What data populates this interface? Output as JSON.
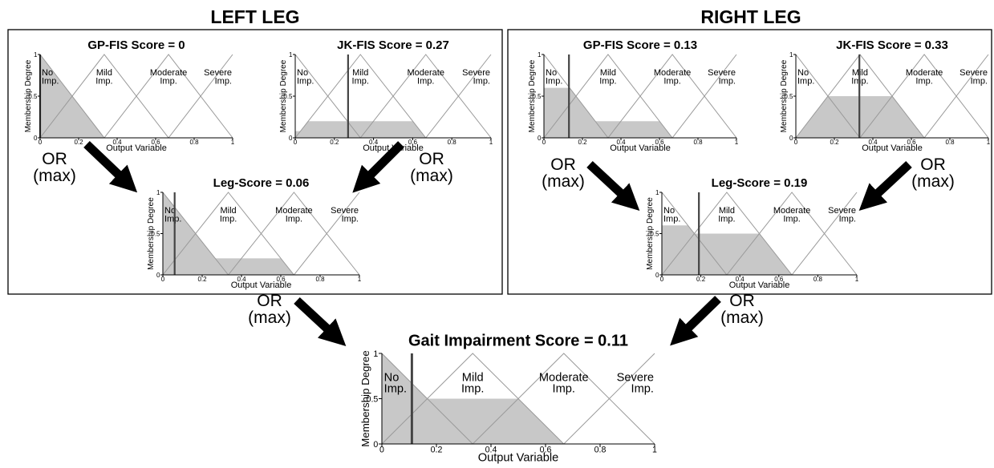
{
  "panels": [
    "LEFT LEG",
    "RIGHT LEG"
  ],
  "arrow_labels": [
    [
      "OR",
      "(max)"
    ],
    [
      "OR",
      "(max)"
    ],
    [
      "OR",
      "(max)"
    ],
    [
      "OR",
      "(max)"
    ],
    [
      "OR",
      "(max)"
    ],
    [
      "OR",
      "(max)"
    ]
  ],
  "chart_data": [
    {
      "type": "line",
      "title": "GP-FIS Score = 0",
      "score": 0,
      "activations": [
        1,
        0,
        0,
        0
      ],
      "ylabel": "Membership Degree",
      "xlabel": "Output Variable",
      "x": [
        0,
        0.333,
        0.667,
        1
      ],
      "series": [
        {
          "name": "No Imp.",
          "color": "#999999",
          "values": [
            1,
            0,
            0,
            0
          ]
        },
        {
          "name": "Mild Imp.",
          "color": "#999999",
          "values": [
            0,
            1,
            0,
            0
          ]
        },
        {
          "name": "Moderate Imp.",
          "color": "#999999",
          "values": [
            0,
            0,
            1,
            0
          ]
        },
        {
          "name": "Severe Imp.",
          "color": "#999999",
          "values": [
            0,
            0,
            0,
            1
          ]
        }
      ],
      "xlim": [
        0,
        1
      ],
      "ylim": [
        0,
        1
      ],
      "xticks": [
        0,
        0.2,
        0.4,
        0.6,
        0.8,
        1
      ],
      "yticks": [
        0,
        0.5,
        1
      ]
    },
    {
      "type": "line",
      "title": "JK-FIS Score = 0.27",
      "score": 0.27,
      "activations": [
        0.08,
        0.2,
        0,
        0
      ],
      "ylabel": "Membership Degree",
      "xlabel": "Output Variable",
      "x": [
        0,
        0.333,
        0.667,
        1
      ],
      "series": [
        {
          "name": "No Imp.",
          "color": "#999999",
          "values": [
            1,
            0,
            0,
            0
          ]
        },
        {
          "name": "Mild Imp.",
          "color": "#999999",
          "values": [
            0,
            1,
            0,
            0
          ]
        },
        {
          "name": "Moderate Imp.",
          "color": "#999999",
          "values": [
            0,
            0,
            1,
            0
          ]
        },
        {
          "name": "Severe Imp.",
          "color": "#999999",
          "values": [
            0,
            0,
            0,
            1
          ]
        }
      ],
      "xlim": [
        0,
        1
      ],
      "ylim": [
        0,
        1
      ],
      "xticks": [
        0,
        0.2,
        0.4,
        0.6,
        0.8,
        1
      ],
      "yticks": [
        0,
        0.5,
        1
      ]
    },
    {
      "type": "line",
      "title": "Leg-Score = 0.06",
      "score": 0.06,
      "activations": [
        1,
        0.2,
        0,
        0
      ],
      "ylabel": "Membership Degree",
      "xlabel": "Output Variable",
      "x": [
        0,
        0.333,
        0.667,
        1
      ],
      "series": [
        {
          "name": "No Imp.",
          "color": "#999999",
          "values": [
            1,
            0,
            0,
            0
          ]
        },
        {
          "name": "Mild Imp.",
          "color": "#999999",
          "values": [
            0,
            1,
            0,
            0
          ]
        },
        {
          "name": "Moderate Imp.",
          "color": "#999999",
          "values": [
            0,
            0,
            1,
            0
          ]
        },
        {
          "name": "Severe Imp.",
          "color": "#999999",
          "values": [
            0,
            0,
            0,
            1
          ]
        }
      ],
      "xlim": [
        0,
        1
      ],
      "ylim": [
        0,
        1
      ],
      "xticks": [
        0,
        0.2,
        0.4,
        0.6,
        0.8,
        1
      ],
      "yticks": [
        0,
        0.5,
        1
      ]
    },
    {
      "type": "line",
      "title": "GP-FIS Score = 0.13",
      "score": 0.13,
      "activations": [
        0.6,
        0.2,
        0,
        0
      ],
      "ylabel": "Membership Degree",
      "xlabel": "Output Variable",
      "x": [
        0,
        0.333,
        0.667,
        1
      ],
      "series": [
        {
          "name": "No Imp.",
          "color": "#999999",
          "values": [
            1,
            0,
            0,
            0
          ]
        },
        {
          "name": "Mild Imp.",
          "color": "#999999",
          "values": [
            0,
            1,
            0,
            0
          ]
        },
        {
          "name": "Moderate Imp.",
          "color": "#999999",
          "values": [
            0,
            0,
            1,
            0
          ]
        },
        {
          "name": "Severe Imp.",
          "color": "#999999",
          "values": [
            0,
            0,
            0,
            1
          ]
        }
      ],
      "xlim": [
        0,
        1
      ],
      "ylim": [
        0,
        1
      ],
      "xticks": [
        0,
        0.2,
        0.4,
        0.6,
        0.8,
        1
      ],
      "yticks": [
        0,
        0.5,
        1
      ]
    },
    {
      "type": "line",
      "title": "JK-FIS Score = 0.33",
      "score": 0.33,
      "activations": [
        0,
        0.5,
        0,
        0
      ],
      "ylabel": "Membership Degree",
      "xlabel": "Output Variable",
      "x": [
        0,
        0.333,
        0.667,
        1
      ],
      "series": [
        {
          "name": "No Imp.",
          "color": "#999999",
          "values": [
            1,
            0,
            0,
            0
          ]
        },
        {
          "name": "Mild Imp.",
          "color": "#999999",
          "values": [
            0,
            1,
            0,
            0
          ]
        },
        {
          "name": "Moderate Imp.",
          "color": "#999999",
          "values": [
            0,
            0,
            1,
            0
          ]
        },
        {
          "name": "Severe Imp.",
          "color": "#999999",
          "values": [
            0,
            0,
            0,
            1
          ]
        }
      ],
      "xlim": [
        0,
        1
      ],
      "ylim": [
        0,
        1
      ],
      "xticks": [
        0,
        0.2,
        0.4,
        0.6,
        0.8,
        1
      ],
      "yticks": [
        0,
        0.5,
        1
      ]
    },
    {
      "type": "line",
      "title": "Leg-Score = 0.19",
      "score": 0.19,
      "activations": [
        0.6,
        0.5,
        0,
        0
      ],
      "ylabel": "Membership Degree",
      "xlabel": "Output Variable",
      "x": [
        0,
        0.333,
        0.667,
        1
      ],
      "series": [
        {
          "name": "No Imp.",
          "color": "#999999",
          "values": [
            1,
            0,
            0,
            0
          ]
        },
        {
          "name": "Mild Imp.",
          "color": "#999999",
          "values": [
            0,
            1,
            0,
            0
          ]
        },
        {
          "name": "Moderate Imp.",
          "color": "#999999",
          "values": [
            0,
            0,
            1,
            0
          ]
        },
        {
          "name": "Severe Imp.",
          "color": "#999999",
          "values": [
            0,
            0,
            0,
            1
          ]
        }
      ],
      "xlim": [
        0,
        1
      ],
      "ylim": [
        0,
        1
      ],
      "xticks": [
        0,
        0.2,
        0.4,
        0.6,
        0.8,
        1
      ],
      "yticks": [
        0,
        0.5,
        1
      ]
    },
    {
      "type": "line",
      "title": "Gait Impairment Score = 0.11",
      "score": 0.11,
      "activations": [
        1,
        0.5,
        0,
        0
      ],
      "ylabel": "Membership Degree",
      "xlabel": "Output Variable",
      "x": [
        0,
        0.333,
        0.667,
        1
      ],
      "series": [
        {
          "name": "No Imp.",
          "color": "#999999",
          "values": [
            1,
            0,
            0,
            0
          ]
        },
        {
          "name": "Mild Imp.",
          "color": "#999999",
          "values": [
            0,
            1,
            0,
            0
          ]
        },
        {
          "name": "Moderate Imp.",
          "color": "#999999",
          "values": [
            0,
            0,
            1,
            0
          ]
        },
        {
          "name": "Severe Imp.",
          "color": "#999999",
          "values": [
            0,
            0,
            0,
            1
          ]
        }
      ],
      "xlim": [
        0,
        1
      ],
      "ylim": [
        0,
        1
      ],
      "xticks": [
        0,
        0.2,
        0.4,
        0.6,
        0.8,
        1
      ],
      "yticks": [
        0,
        0.5,
        1
      ]
    }
  ]
}
